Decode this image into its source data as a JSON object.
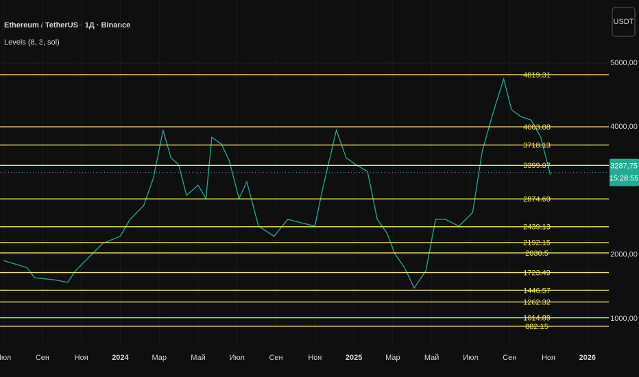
{
  "chart_data": {
    "type": "line",
    "title": "Ethereum / TetherUS · 1Д · Binance",
    "subtitle": "Levels (8, 3, sol)",
    "currency": "USDT",
    "color": "#26a69a",
    "x": [
      0,
      1.2,
      1.6,
      2.6,
      3.3,
      3.7,
      4.4,
      5.1,
      6,
      6.5,
      7.2,
      7.7,
      8.2,
      8.6,
      9,
      9.4,
      10,
      10.4,
      10.7,
      11.2,
      11.6,
      12.1,
      12.5,
      13.1,
      13.9,
      14.6,
      15.3,
      16,
      16.4,
      17.1,
      17.6,
      18.1,
      18.7,
      19.2,
      19.7,
      20.1,
      20.6,
      21.1,
      21.7,
      22.2,
      22.7,
      23.4,
      24.1,
      24.6,
      25.2,
      25.7,
      26.1,
      26.6,
      27.1,
      27.6,
      28.1
    ],
    "values": [
      1910,
      1800,
      1640,
      1610,
      1570,
      1750,
      1965,
      2180,
      2290,
      2555,
      2770,
      3200,
      3950,
      3520,
      3410,
      2930,
      3090,
      2880,
      3840,
      3730,
      3470,
      2880,
      3145,
      2450,
      2290,
      2555,
      2500,
      2450,
      3040,
      3950,
      3520,
      3410,
      3305,
      2555,
      2340,
      2020,
      1800,
      1480,
      1750,
      2555,
      2555,
      2450,
      2660,
      3630,
      4270,
      4750,
      4270,
      4160,
      4110,
      3840,
      3250
    ],
    "xlim": [
      -0.18,
      31.1
    ],
    "xticks": [
      {
        "value": 0,
        "label": "Июл"
      },
      {
        "value": 2,
        "label": "Сен"
      },
      {
        "value": 4,
        "label": "Ноя"
      },
      {
        "value": 6,
        "label": "2024"
      },
      {
        "value": 8,
        "label": "Мар"
      },
      {
        "value": 10,
        "label": "Май"
      },
      {
        "value": 12,
        "label": "Июл"
      },
      {
        "value": 14,
        "label": "Сен"
      },
      {
        "value": 16,
        "label": "Ноя"
      },
      {
        "value": 18,
        "label": "2025"
      },
      {
        "value": 20,
        "label": "Мар"
      },
      {
        "value": 22,
        "label": "Май"
      },
      {
        "value": 24,
        "label": "Июл"
      },
      {
        "value": 26,
        "label": "Сен"
      },
      {
        "value": 28,
        "label": "Ноя"
      },
      {
        "value": 30,
        "label": "2026"
      }
    ],
    "ylim": [
      571,
      5987
    ],
    "yticks": [
      {
        "value": 1000,
        "label": "1000,00"
      },
      {
        "value": 2000,
        "label": "2000,00"
      },
      {
        "value": 4000,
        "label": "4000,00"
      },
      {
        "value": 5000,
        "label": "5000,00"
      }
    ],
    "levels": [
      4819.31,
      4003.08,
      3718.13,
      3399.07,
      2874.69,
      2439.13,
      2192.15,
      2030.5,
      1723.49,
      1446.57,
      1262.32,
      1014.89,
      882.15
    ],
    "level_color": "#f2e45c",
    "last_price": {
      "value": 3287.75,
      "label": "3287,75"
    },
    "countdown": "15:28:55"
  }
}
